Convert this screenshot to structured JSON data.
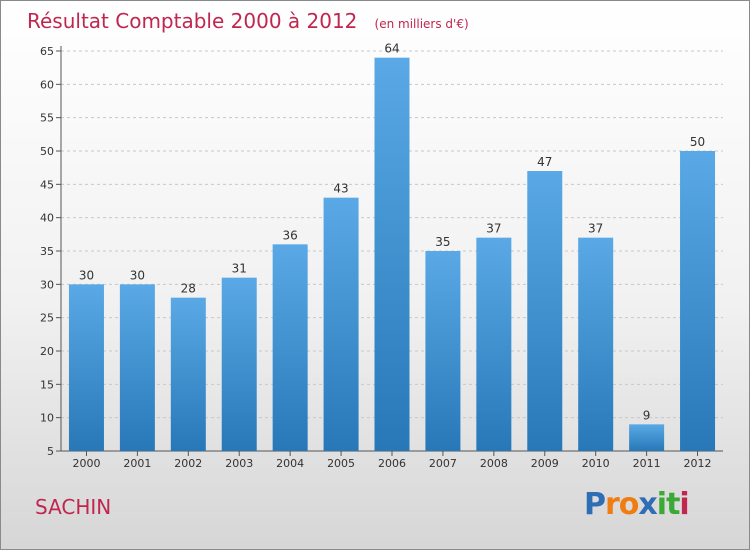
{
  "chart_data": {
    "type": "bar",
    "title": "Résultat Comptable 2000 à 2012",
    "subtitle": "(en milliers d'€)",
    "categories": [
      "2000",
      "2001",
      "2002",
      "2003",
      "2004",
      "2005",
      "2006",
      "2007",
      "2008",
      "2009",
      "2010",
      "2011",
      "2012"
    ],
    "values": [
      30,
      30,
      28,
      31,
      36,
      43,
      64,
      35,
      37,
      47,
      37,
      9,
      50
    ],
    "ylim": [
      5,
      65
    ],
    "yticks": [
      5,
      10,
      15,
      20,
      25,
      30,
      35,
      40,
      45,
      50,
      55,
      60,
      65
    ],
    "grid": true,
    "xlabel": "",
    "ylabel": ""
  },
  "footer": {
    "commune": "SACHIN",
    "logo": "Proxiti",
    "logo_letters": [
      "P",
      "r",
      "o",
      "x",
      "i",
      "t",
      "i"
    ],
    "logo_colors": [
      "#2f6db5",
      "#f07d12",
      "#f07d12",
      "#2f6db5",
      "#3aaa35",
      "#3aaa35",
      "#c0264f"
    ]
  },
  "colors": {
    "accent": "#c0264f",
    "bar_top": "#5aa9e6",
    "bar_bottom": "#2878b8"
  }
}
